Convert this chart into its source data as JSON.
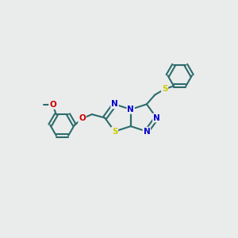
{
  "bg_color": "#eaecec",
  "bond_color": "#2d6b6b",
  "heteroatom_colors": {
    "N": "#0000cc",
    "S": "#cccc00",
    "O": "#cc0000"
  },
  "bond_width": 1.5,
  "figsize": [
    3.0,
    3.0
  ],
  "dpi": 100
}
